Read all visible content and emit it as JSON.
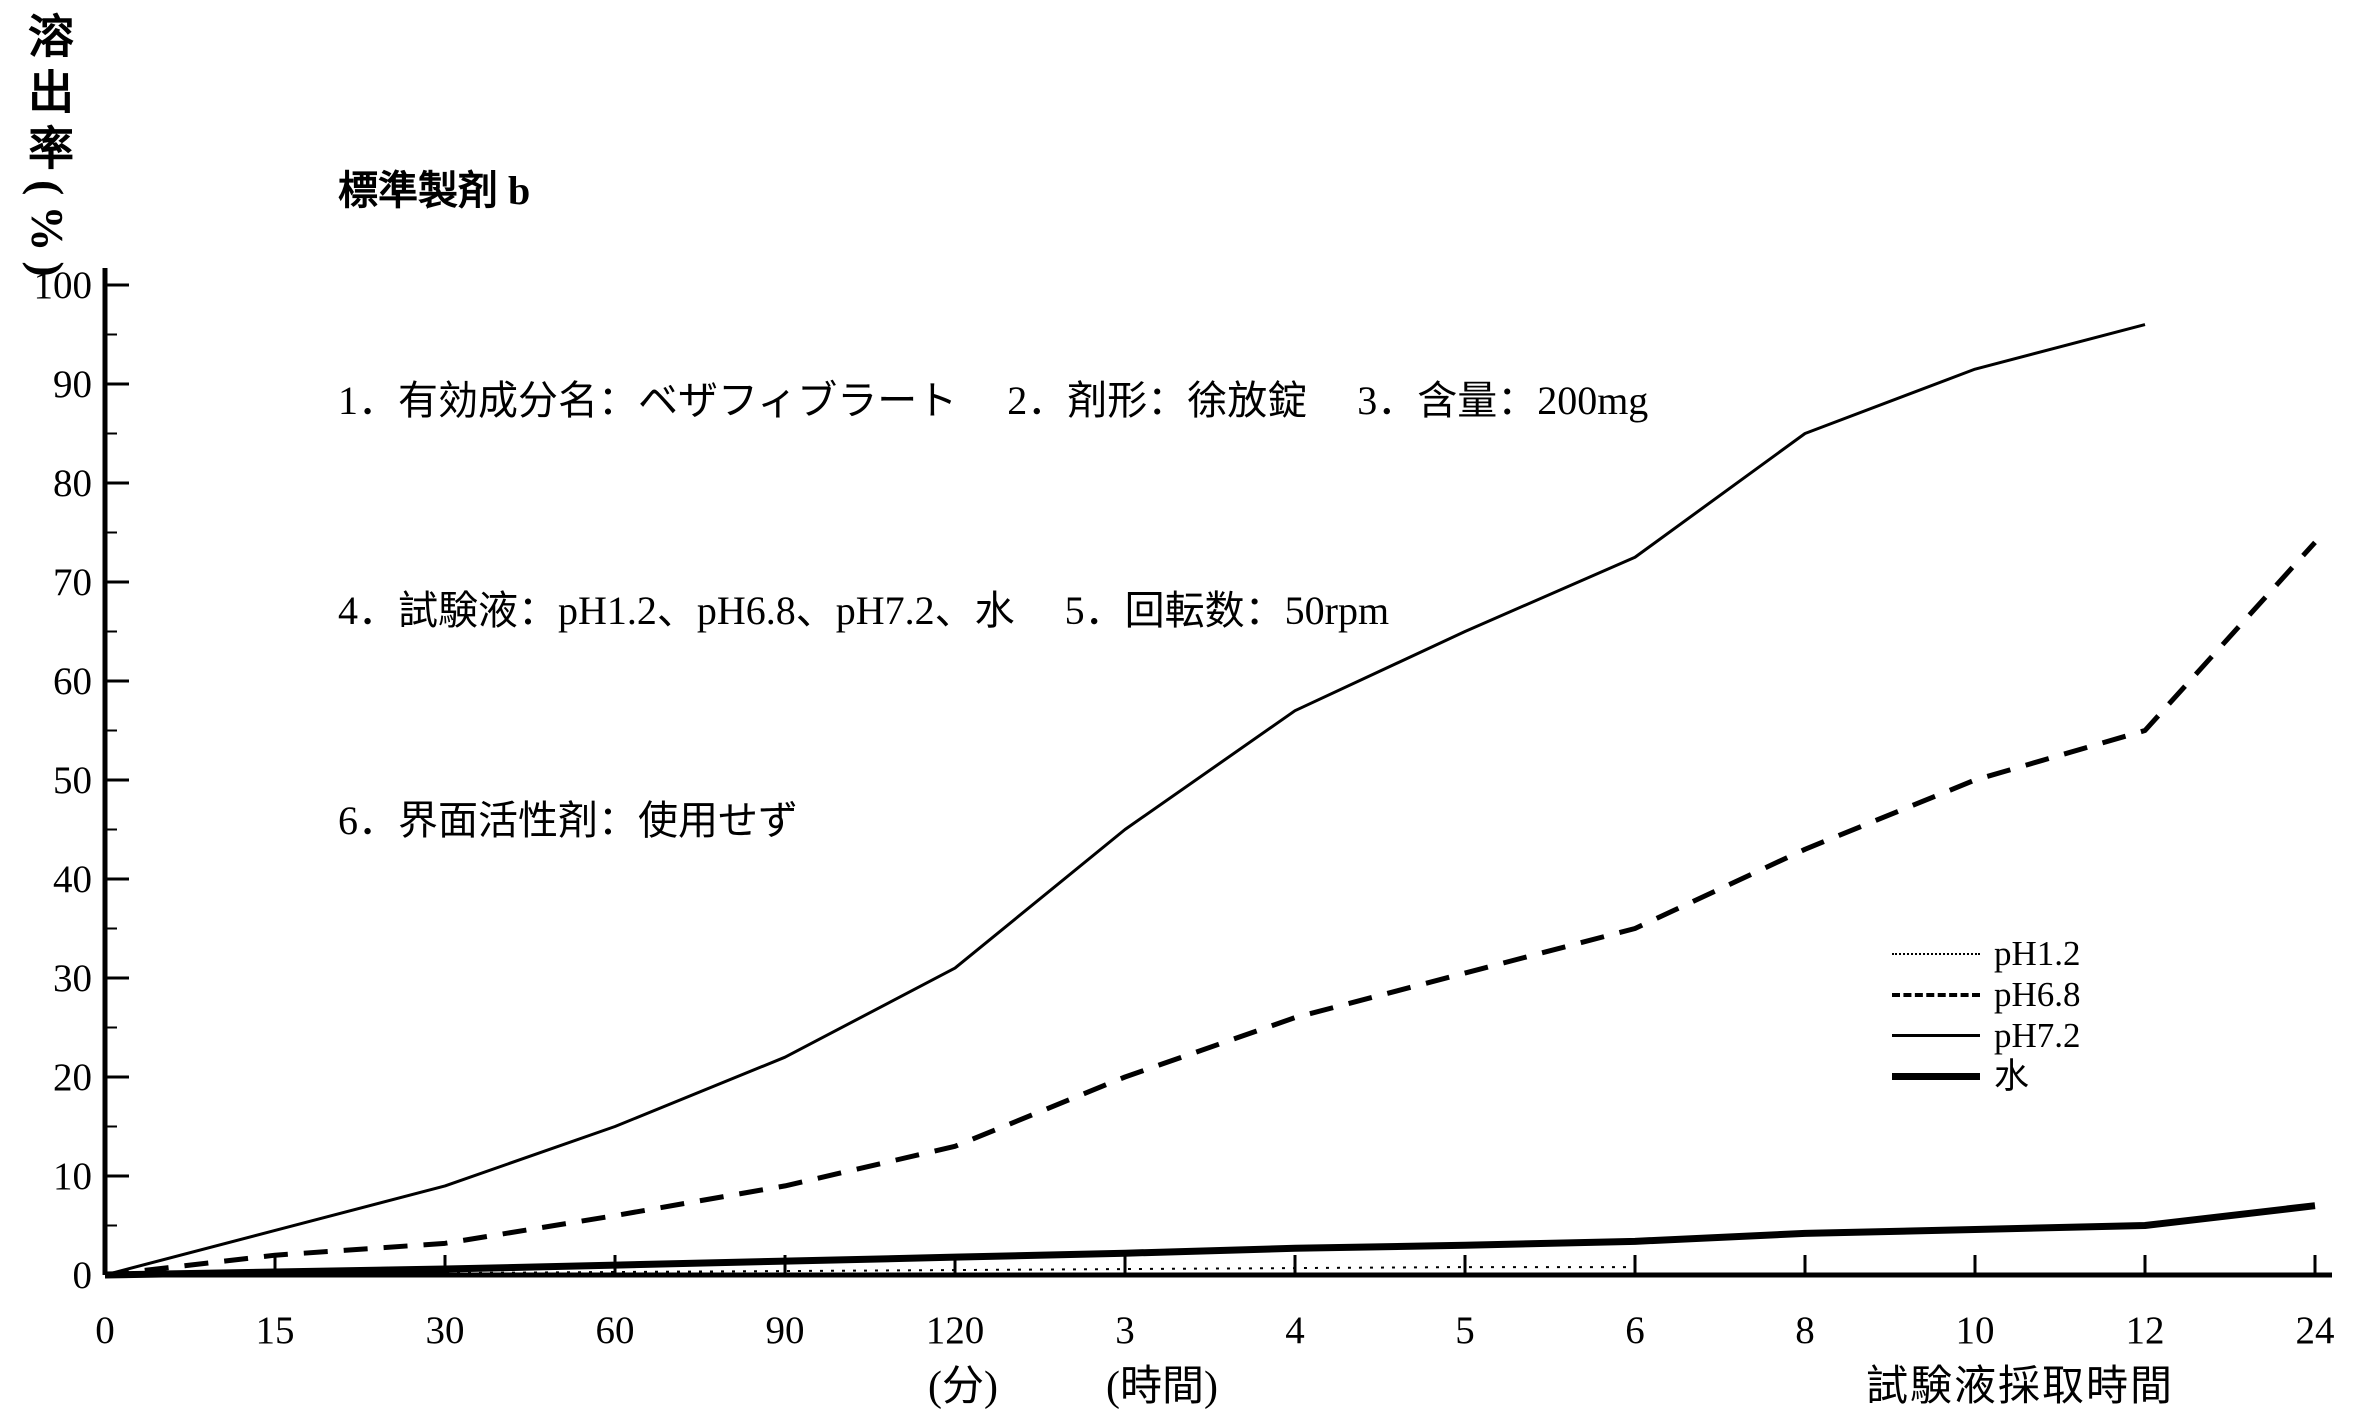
{
  "page": {
    "background": "#ffffff",
    "ink": "#000000"
  },
  "header": {
    "title": "標準製剤 b",
    "line2": "1．有効成分名：ベザフィブラート　 2．剤形：徐放錠　 3．含量：200mg",
    "line3": "4．試験液：pH1.2、pH6.8、pH7.2、水　 5．回転数：50rpm",
    "line4": "6．界面活性剤：使用せず"
  },
  "axis": {
    "y_title": "溶出率(%)",
    "x_caption_minutes": "(分)",
    "x_caption_hours": "(時間)",
    "x_axis_label": "試験液採取時間"
  },
  "chart_data": {
    "type": "line",
    "title": "標準製剤 b",
    "ylabel": "溶出率(%)",
    "xlabel": "試験液採取時間",
    "ylim": [
      0,
      100
    ],
    "grid": false,
    "legend_position": "right-middle",
    "y_tick_labels": [
      "0",
      "10",
      "20",
      "30",
      "40",
      "50",
      "60",
      "70",
      "80",
      "90",
      "100"
    ],
    "x_tick_labels": [
      "0",
      "15",
      "30",
      "60",
      "90",
      "120",
      "3",
      "4",
      "5",
      "6",
      "8",
      "10",
      "12",
      "24"
    ],
    "x_tick_units": "0-120 are minutes (分), 3-24 are hours (時間); ticks evenly spaced",
    "series": [
      {
        "name": "pH1.2",
        "style": "dotted",
        "color": "#000000",
        "values": [
          0,
          0.1,
          0.2,
          0.3,
          0.4,
          0.5,
          0.6,
          0.7,
          0.8,
          0.8
        ],
        "note": "ends at 6 hours"
      },
      {
        "name": "pH6.8",
        "style": "dashed",
        "color": "#000000",
        "values": [
          0,
          2,
          3.2,
          6,
          9,
          13,
          20,
          26,
          30.5,
          35,
          43,
          50,
          55,
          74
        ]
      },
      {
        "name": "pH7.2",
        "style": "solid-thin",
        "color": "#000000",
        "values": [
          0,
          4.5,
          9,
          15,
          22,
          31,
          45,
          57,
          65,
          72.5,
          85,
          91.5,
          96
        ],
        "note": "ends at 12 hours"
      },
      {
        "name": "水",
        "style": "solid-thick",
        "color": "#000000",
        "values": [
          0,
          0.3,
          0.6,
          1,
          1.4,
          1.8,
          2.2,
          2.7,
          3,
          3.4,
          4.2,
          4.6,
          5,
          7
        ]
      }
    ]
  }
}
